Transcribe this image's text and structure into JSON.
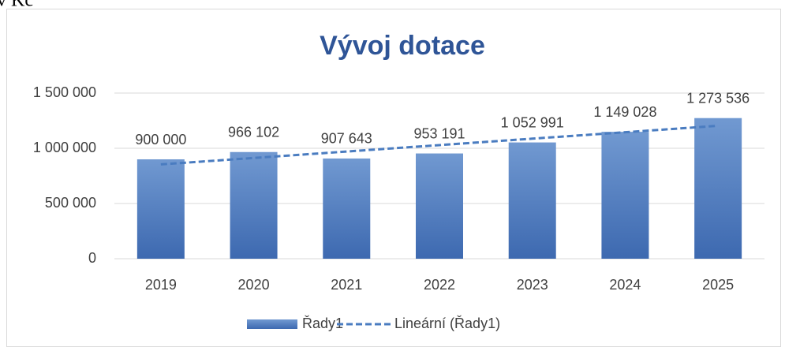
{
  "caption": "v Kč",
  "chart_data": {
    "type": "bar",
    "title": "Vývoj dotace",
    "categories": [
      "2019",
      "2020",
      "2021",
      "2022",
      "2023",
      "2024",
      "2025"
    ],
    "series": [
      {
        "name": "Řady1",
        "color": "#4472c4",
        "values": [
          900000,
          966102,
          907643,
          953191,
          1052991,
          1149028,
          1273536
        ],
        "value_labels": [
          "900 000",
          "966 102",
          "907 643",
          "953 191",
          "1 052 991",
          "1 149 028",
          "1 273 536"
        ]
      },
      {
        "name": "Lineární (Řady1)",
        "color": "#4a7cc0",
        "type": "line",
        "dashed": true,
        "values": [
          854090,
          912369,
          970648,
          1028927,
          1087206,
          1145485,
          1203764
        ]
      }
    ],
    "ylim": [
      0,
      1500000
    ],
    "yticks": [
      0,
      {
        "value": 500000,
        "label": "500 000"
      },
      {
        "value": 1000000,
        "label": "1 000 000"
      },
      {
        "value": 1500000,
        "label": "1 500 000"
      }
    ],
    "grid": true,
    "legend": "bottom"
  }
}
